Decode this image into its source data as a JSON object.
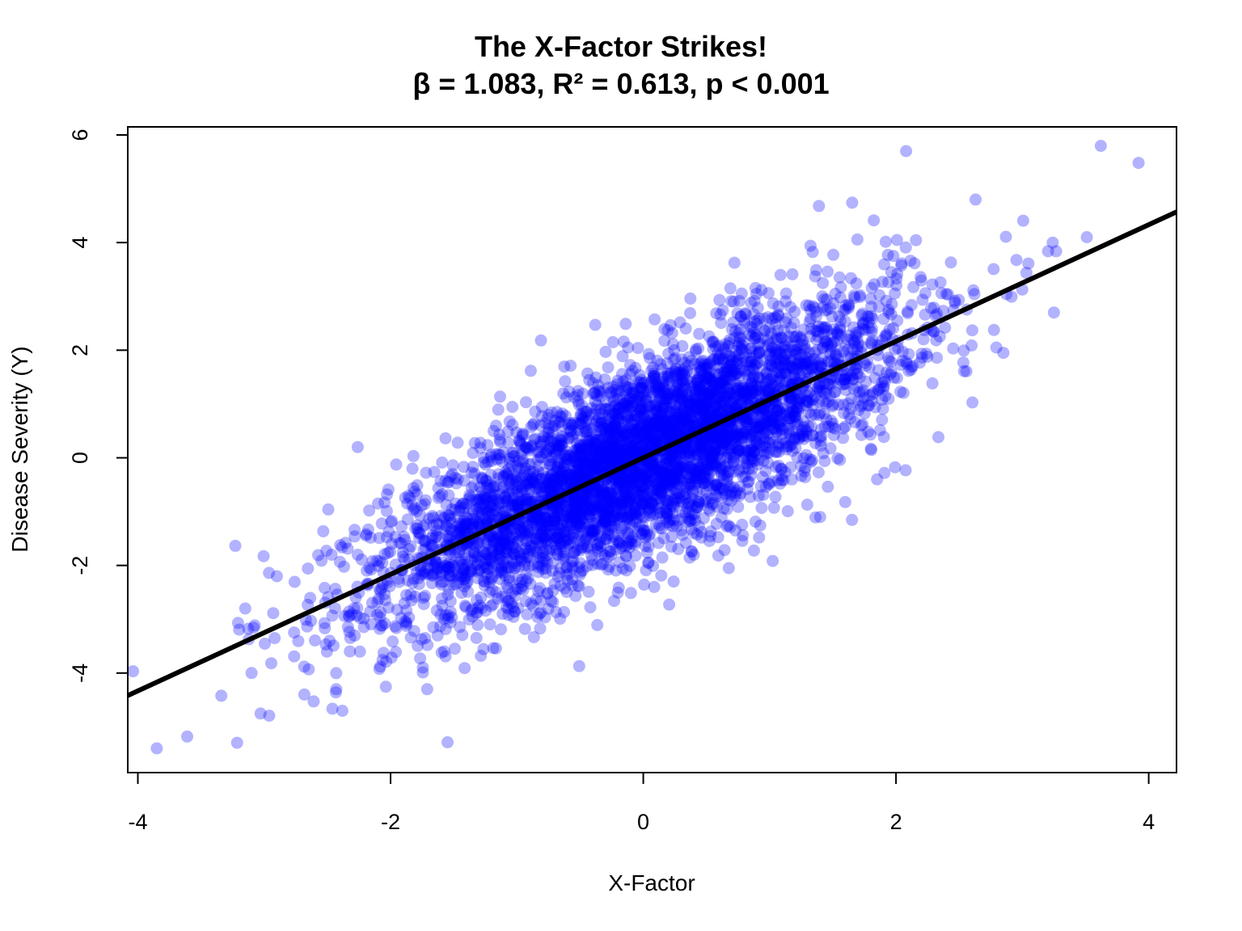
{
  "chart_data": {
    "type": "scatter",
    "title": "The X-Factor Strikes!",
    "subtitle": "β = 1.083, R² = 0.613, p < 0.001",
    "xlabel": "X-Factor",
    "ylabel": "Disease Severity (Y)",
    "xlim": [
      -4.08,
      4.22
    ],
    "ylim": [
      -5.85,
      6.15
    ],
    "x_ticks": [
      -4,
      -2,
      0,
      2,
      4
    ],
    "x_tick_labels": [
      "-4",
      "-2",
      "0",
      "2",
      "4"
    ],
    "y_ticks": [
      -4,
      -2,
      0,
      2,
      4,
      6
    ],
    "y_tick_labels": [
      "-4",
      "-2",
      "0",
      "2",
      "4",
      "6"
    ],
    "grid": false,
    "point_color": "#0000ff",
    "point_opacity": 0.3,
    "line_color": "#000000",
    "regression": {
      "slope": 1.083,
      "intercept": 0.0,
      "r_squared": 0.613
    },
    "approx_n_points": 5000,
    "notable_points": [
      {
        "x": 2.08,
        "y": 5.7
      },
      {
        "x": 3.92,
        "y": 5.48
      },
      {
        "x": -3.85,
        "y": -5.4
      },
      {
        "x": -2.26,
        "y": 0.2
      },
      {
        "x": 1.39,
        "y": 4.68
      },
      {
        "x": 2.63,
        "y": 4.8
      },
      {
        "x": -0.81,
        "y": 2.18
      },
      {
        "x": -0.38,
        "y": 2.47
      },
      {
        "x": 1.85,
        "y": -0.4
      },
      {
        "x": 3.51,
        "y": 4.1
      },
      {
        "x": 3.24,
        "y": 4.0
      },
      {
        "x": -3.1,
        "y": -4.0
      },
      {
        "x": -2.43,
        "y": -4.3
      },
      {
        "x": -1.71,
        "y": -4.3
      },
      {
        "x": 0.24,
        "y": -2.3
      },
      {
        "x": 2.85,
        "y": 1.95
      },
      {
        "x": 3.25,
        "y": 2.7
      },
      {
        "x": 1.4,
        "y": -1.1
      },
      {
        "x": -3.15,
        "y": -2.8
      },
      {
        "x": -2.9,
        "y": -2.2
      }
    ]
  }
}
